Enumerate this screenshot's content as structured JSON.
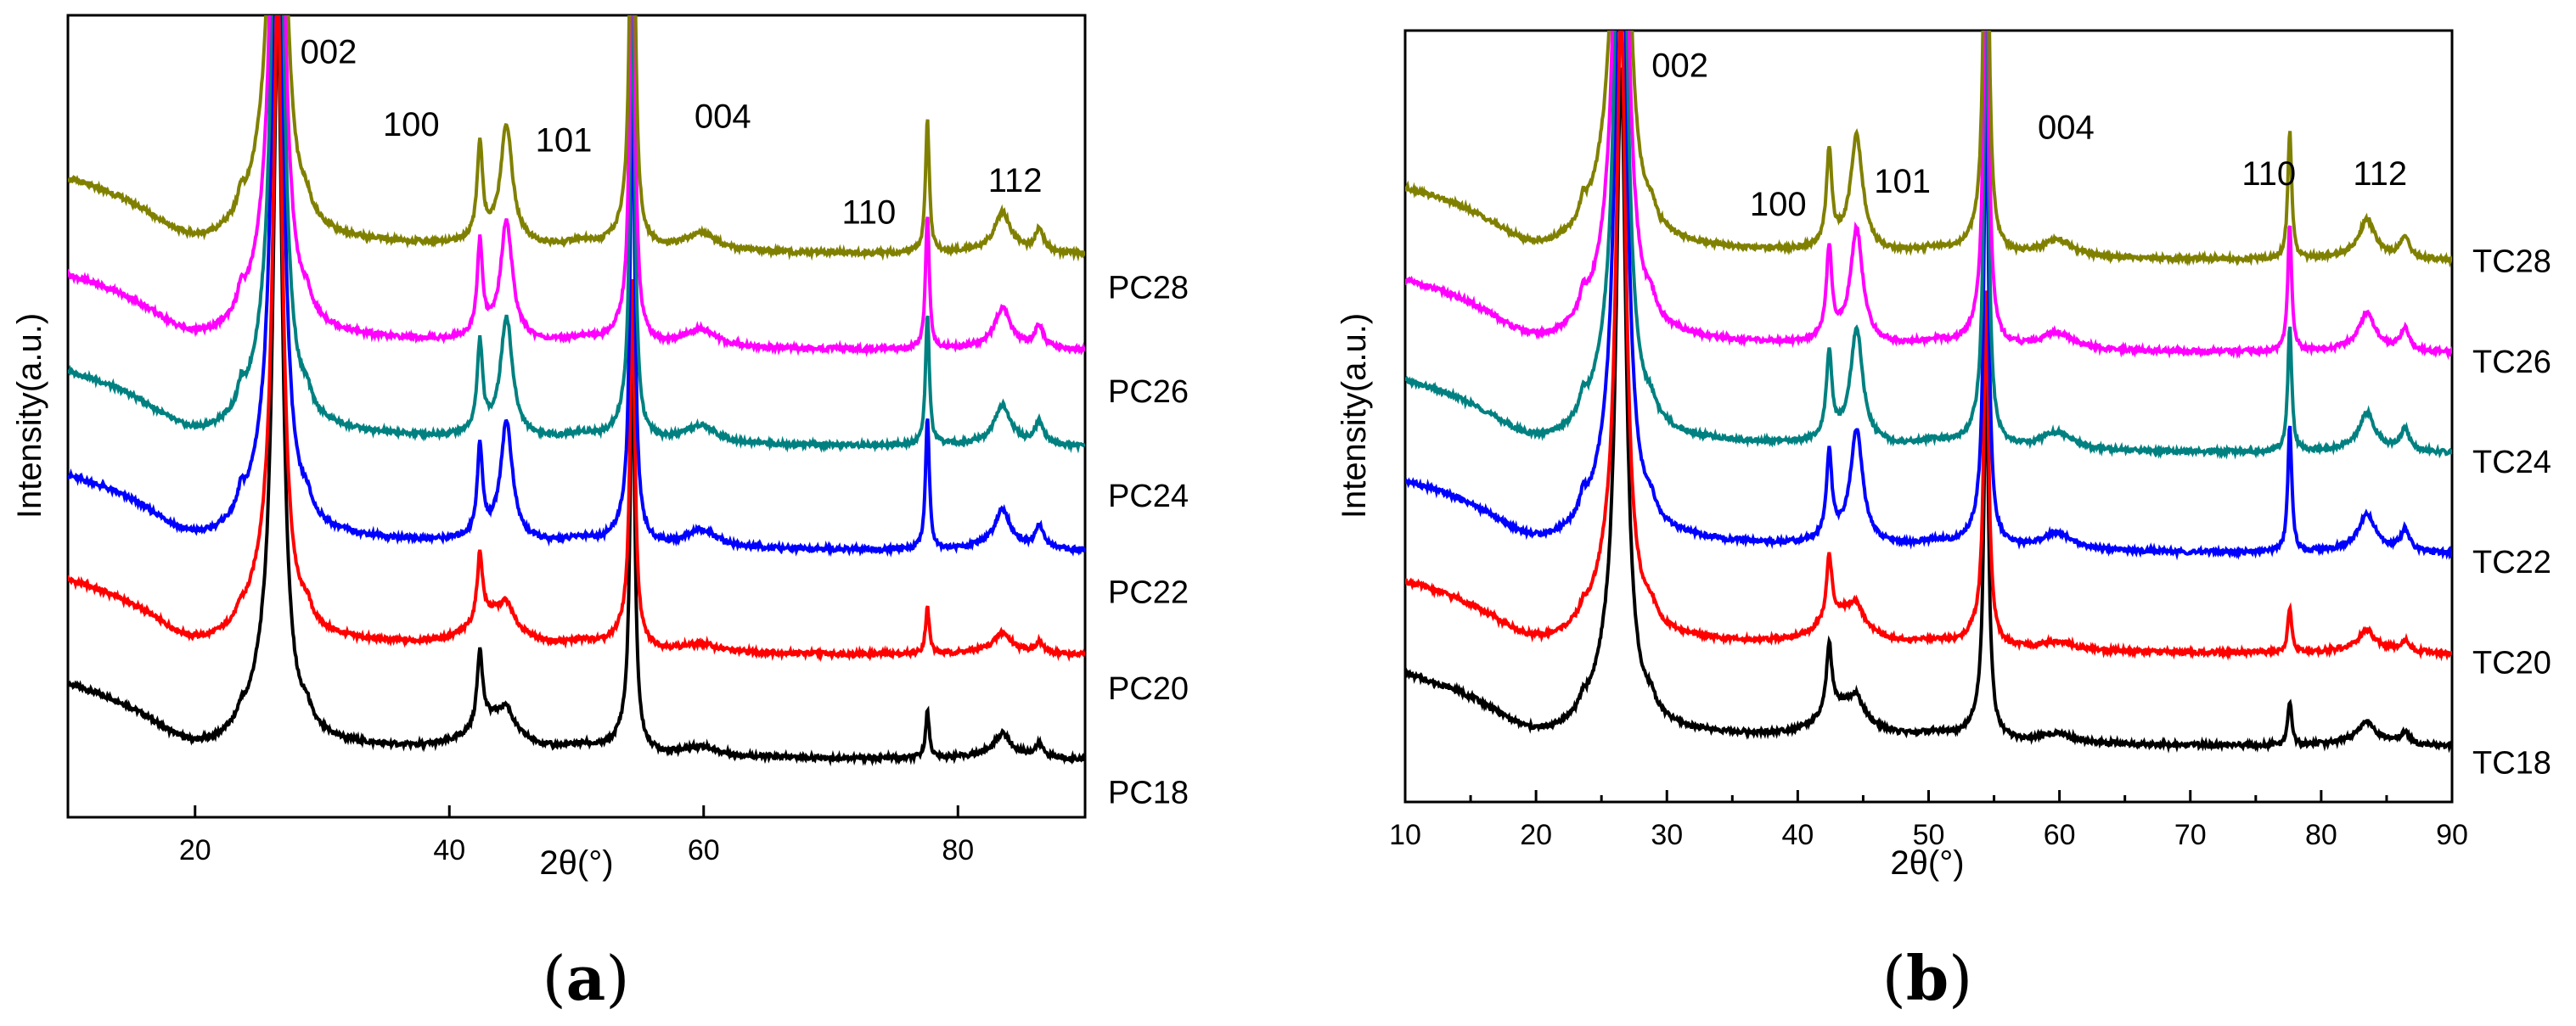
{
  "figure": {
    "caption_a": {
      "open": "(",
      "letter": "a",
      "close": ")"
    },
    "caption_b": {
      "open": "(",
      "letter": "b",
      "close": ")"
    }
  },
  "chart_data": [
    {
      "type": "line",
      "id": "a",
      "xlabel": "2θ(°)",
      "ylabel": "Intensity(a.u.)",
      "xlim": [
        10,
        90
      ],
      "ylim": [
        0,
        100
      ],
      "xticks": [
        20,
        40,
        60,
        80
      ],
      "x_minor_ticks": [],
      "peak_labels": [
        {
          "text": "002",
          "x": 30.5,
          "y": 94
        },
        {
          "text": "100",
          "x": 37.0,
          "y": 85
        },
        {
          "text": "101",
          "x": 49.0,
          "y": 83
        },
        {
          "text": "004",
          "x": 61.5,
          "y": 86
        },
        {
          "text": "110",
          "x": 73.0,
          "y": 74
        },
        {
          "text": "112",
          "x": 84.5,
          "y": 78
        }
      ],
      "series": [
        {
          "name": "PC18",
          "color": "#000000",
          "offset": 0,
          "label_y": 0,
          "peak_scale": 0.95,
          "high_angle_scale": 0.55
        },
        {
          "name": "PC20",
          "color": "#ff0000",
          "offset": 13,
          "label_y": 13,
          "peak_scale": 0.85,
          "high_angle_scale": 0.45
        },
        {
          "name": "PC22",
          "color": "#0000ff",
          "offset": 26,
          "label_y": 25,
          "peak_scale": 1.1,
          "high_angle_scale": 1.0
        },
        {
          "name": "PC24",
          "color": "#008080",
          "offset": 39,
          "label_y": 37,
          "peak_scale": 1.1,
          "high_angle_scale": 1.0
        },
        {
          "name": "PC26",
          "color": "#ff00ff",
          "offset": 51,
          "label_y": 50,
          "peak_scale": 1.15,
          "high_angle_scale": 1.0
        },
        {
          "name": "PC28",
          "color": "#808000",
          "offset": 63,
          "label_y": 63,
          "peak_scale": 1.2,
          "high_angle_scale": 1.0
        }
      ]
    },
    {
      "type": "line",
      "id": "b",
      "xlabel": "2θ(°)",
      "ylabel": "Intensity(a.u.)",
      "xlim": [
        10,
        90
      ],
      "ylim": [
        0,
        100
      ],
      "xticks": [
        10,
        20,
        30,
        40,
        50,
        60,
        70,
        80,
        90
      ],
      "x_minor_ticks": [
        15,
        25,
        35,
        45,
        55,
        65,
        75,
        85
      ],
      "peak_labels": [
        {
          "text": "002",
          "x": 31.0,
          "y": 94
        },
        {
          "text": "100",
          "x": 38.5,
          "y": 76
        },
        {
          "text": "101",
          "x": 48.0,
          "y": 79
        },
        {
          "text": "004",
          "x": 60.5,
          "y": 86
        },
        {
          "text": "110",
          "x": 76.0,
          "y": 80
        },
        {
          "text": "112",
          "x": 84.5,
          "y": 80
        }
      ],
      "series": [
        {
          "name": "TC18",
          "color": "#000000",
          "offset": 0,
          "label_y": 2,
          "peak_scale": 0.9,
          "high_angle_scale": 0.55
        },
        {
          "name": "TC20",
          "color": "#ff0000",
          "offset": 12,
          "label_y": 15,
          "peak_scale": 0.85,
          "high_angle_scale": 0.5
        },
        {
          "name": "TC22",
          "color": "#0000ff",
          "offset": 25,
          "label_y": 28,
          "peak_scale": 1.1,
          "high_angle_scale": 1.0
        },
        {
          "name": "TC24",
          "color": "#008080",
          "offset": 38,
          "label_y": 41,
          "peak_scale": 1.1,
          "high_angle_scale": 1.0
        },
        {
          "name": "TC26",
          "color": "#ff00ff",
          "offset": 51,
          "label_y": 54,
          "peak_scale": 1.15,
          "high_angle_scale": 1.0
        },
        {
          "name": "TC28",
          "color": "#808000",
          "offset": 63,
          "label_y": 67,
          "peak_scale": 1.2,
          "high_angle_scale": 1.0
        }
      ]
    }
  ]
}
